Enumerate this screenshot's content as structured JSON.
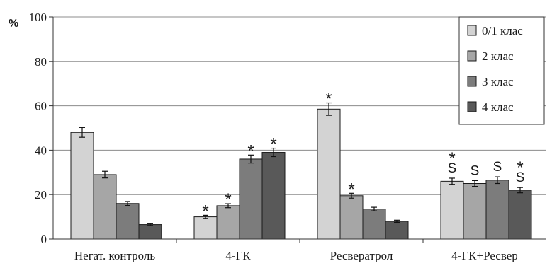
{
  "chart_data": {
    "type": "bar",
    "ylabel": "%",
    "ylim": [
      0,
      100
    ],
    "yticks": [
      0,
      20,
      40,
      60,
      80,
      100
    ],
    "grid": true,
    "legend_position": "top-right",
    "categories": [
      "Негат. контроль",
      "4-ГК",
      "Ресвератрол",
      "4-ГК+Ресвер"
    ],
    "series": [
      {
        "name": "0/1 клас",
        "color": "#d3d3d3",
        "values": [
          48,
          10,
          58.5,
          26
        ],
        "errors": [
          2.2,
          0.7,
          2.8,
          1.4
        ]
      },
      {
        "name": "2 клас",
        "color": "#a6a6a6",
        "values": [
          29,
          15,
          19.5,
          25
        ],
        "errors": [
          1.5,
          0.9,
          1.1,
          1.3
        ]
      },
      {
        "name": "3 клас",
        "color": "#7c7c7c",
        "values": [
          16,
          36,
          13.5,
          26.5
        ],
        "errors": [
          0.9,
          1.8,
          0.8,
          1.5
        ]
      },
      {
        "name": "4 клас",
        "color": "#595959",
        "values": [
          6.5,
          39,
          8,
          22
        ],
        "errors": [
          0.4,
          1.9,
          0.5,
          1.2
        ]
      }
    ],
    "annotations": [
      {
        "category": 1,
        "series": 0,
        "marks": [
          "*"
        ]
      },
      {
        "category": 1,
        "series": 1,
        "marks": [
          "*"
        ]
      },
      {
        "category": 1,
        "series": 2,
        "marks": [
          "*"
        ]
      },
      {
        "category": 1,
        "series": 3,
        "marks": [
          "*"
        ]
      },
      {
        "category": 2,
        "series": 0,
        "marks": [
          "*"
        ]
      },
      {
        "category": 2,
        "series": 1,
        "marks": [
          "*"
        ]
      },
      {
        "category": 3,
        "series": 0,
        "marks": [
          "S",
          "*"
        ]
      },
      {
        "category": 3,
        "series": 1,
        "marks": [
          "S"
        ]
      },
      {
        "category": 3,
        "series": 2,
        "marks": [
          "S"
        ]
      },
      {
        "category": 3,
        "series": 3,
        "marks": [
          "S",
          "*"
        ]
      }
    ]
  }
}
